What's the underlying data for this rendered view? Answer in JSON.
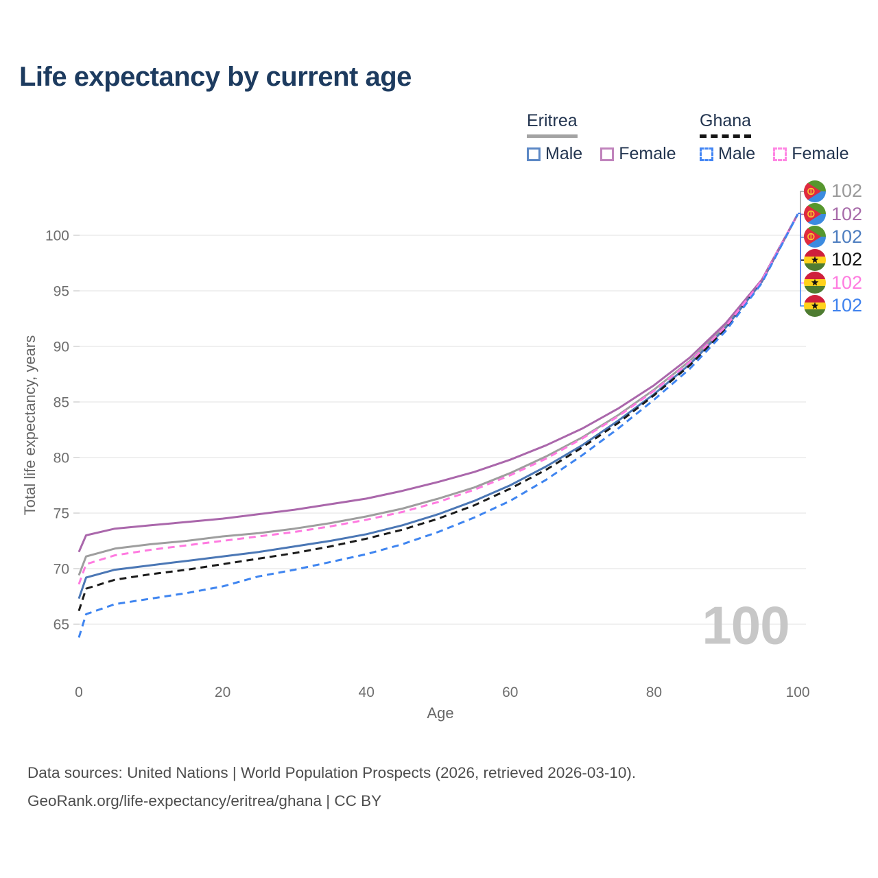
{
  "title": "Life expectancy by current age",
  "legend": {
    "groups": [
      {
        "name": "Eritrea",
        "line_style": "solid",
        "underline_color": "#a3a3a3",
        "items": [
          {
            "label": "Male",
            "color": "#5b87c5",
            "dashed": false
          },
          {
            "label": "Female",
            "color": "#c083bc",
            "dashed": false
          }
        ]
      },
      {
        "name": "Ghana",
        "line_style": "dashed",
        "underline_color": "#141414",
        "items": [
          {
            "label": "Male",
            "color": "#4285f4",
            "dashed": true
          },
          {
            "label": "Female",
            "color": "#ff85e3",
            "dashed": true
          }
        ]
      }
    ]
  },
  "axis": {
    "x_title": "Age",
    "y_title": "Total life expectancy, years"
  },
  "chart_data": {
    "type": "line",
    "title": "Life expectancy by current age",
    "xlabel": "Age",
    "ylabel": "Total life expectancy, years",
    "grid": "horizontal",
    "legend_position": "top-right",
    "xlim": [
      0,
      100
    ],
    "ylim": [
      62.5,
      103
    ],
    "xticks": [
      0,
      20,
      40,
      60,
      80,
      100
    ],
    "yticks": [
      65,
      70,
      75,
      80,
      85,
      90,
      95,
      100
    ],
    "x": [
      0,
      1,
      5,
      10,
      15,
      20,
      25,
      30,
      35,
      40,
      45,
      50,
      55,
      60,
      65,
      70,
      75,
      80,
      85,
      90,
      95,
      100
    ],
    "series": [
      {
        "name": "Eritrea (both sexes)",
        "country": "Eritrea",
        "color": "#9e9e9e",
        "dash": null,
        "values": [
          69.4,
          71.1,
          71.8,
          72.2,
          72.5,
          72.9,
          73.2,
          73.6,
          74.1,
          74.7,
          75.4,
          76.3,
          77.3,
          78.6,
          80.1,
          81.8,
          83.8,
          86.1,
          88.7,
          91.9,
          95.9,
          101.9
        ]
      },
      {
        "name": "Eritrea Male",
        "country": "Eritrea",
        "color": "#4b77b5",
        "dash": null,
        "values": [
          67.3,
          69.2,
          69.9,
          70.3,
          70.7,
          71.1,
          71.5,
          72.0,
          72.5,
          73.1,
          73.9,
          74.9,
          76.1,
          77.5,
          79.2,
          81.1,
          83.3,
          85.7,
          88.4,
          91.7,
          95.8,
          101.9
        ]
      },
      {
        "name": "Ghana (both sexes)",
        "country": "Ghana",
        "color": "#1a1a1a",
        "dash": "10 7",
        "values": [
          66.2,
          68.2,
          69.0,
          69.5,
          69.9,
          70.4,
          70.9,
          71.4,
          72.0,
          72.7,
          73.5,
          74.5,
          75.7,
          77.2,
          78.9,
          80.9,
          83.1,
          85.6,
          88.3,
          91.6,
          95.8,
          101.9
        ]
      },
      {
        "name": "Eritrea Female",
        "country": "Eritrea",
        "color": "#aa67ab",
        "dash": null,
        "values": [
          71.5,
          73.0,
          73.6,
          73.9,
          74.2,
          74.5,
          74.9,
          75.3,
          75.8,
          76.3,
          77.0,
          77.8,
          78.7,
          79.8,
          81.1,
          82.6,
          84.4,
          86.5,
          89.0,
          92.1,
          96.0,
          101.9
        ]
      },
      {
        "name": "Ghana Female",
        "country": "Ghana",
        "color": "#ff7ae0",
        "dash": "10 7",
        "values": [
          68.6,
          70.4,
          71.2,
          71.7,
          72.1,
          72.5,
          72.9,
          73.3,
          73.8,
          74.4,
          75.1,
          76.0,
          77.1,
          78.4,
          79.9,
          81.7,
          83.7,
          86.0,
          88.6,
          91.8,
          95.9,
          101.9
        ]
      },
      {
        "name": "Ghana Male",
        "country": "Ghana",
        "color": "#3f85f0",
        "dash": "10 7",
        "values": [
          63.8,
          65.9,
          66.8,
          67.3,
          67.8,
          68.4,
          69.3,
          69.9,
          70.6,
          71.3,
          72.2,
          73.3,
          74.6,
          76.1,
          78.0,
          80.2,
          82.6,
          85.2,
          88.0,
          91.4,
          95.7,
          101.9
        ]
      }
    ]
  },
  "right_labels": [
    {
      "flag": "eritrea",
      "series": "Eritrea (both sexes)",
      "value": "102",
      "color": "#9a9a9a"
    },
    {
      "flag": "eritrea",
      "series": "Eritrea Female",
      "value": "102",
      "color": "#a76ba9"
    },
    {
      "flag": "eritrea",
      "series": "Eritrea Male",
      "value": "102",
      "color": "#4e7ec0"
    },
    {
      "flag": "ghana",
      "series": "Ghana (both sexes)",
      "value": "102",
      "color": "#141414"
    },
    {
      "flag": "ghana",
      "series": "Ghana Female",
      "value": "102",
      "color": "#ff7ce0"
    },
    {
      "flag": "ghana",
      "series": "Ghana Male",
      "value": "102",
      "color": "#3f82ee"
    }
  ],
  "watermark": "100",
  "footer": {
    "line1": "Data sources: United Nations | World Population Prospects (2026, retrieved 2026-03-10).",
    "line2": "GeoRank.org/life-expectancy/eritrea/ghana | CC BY"
  }
}
